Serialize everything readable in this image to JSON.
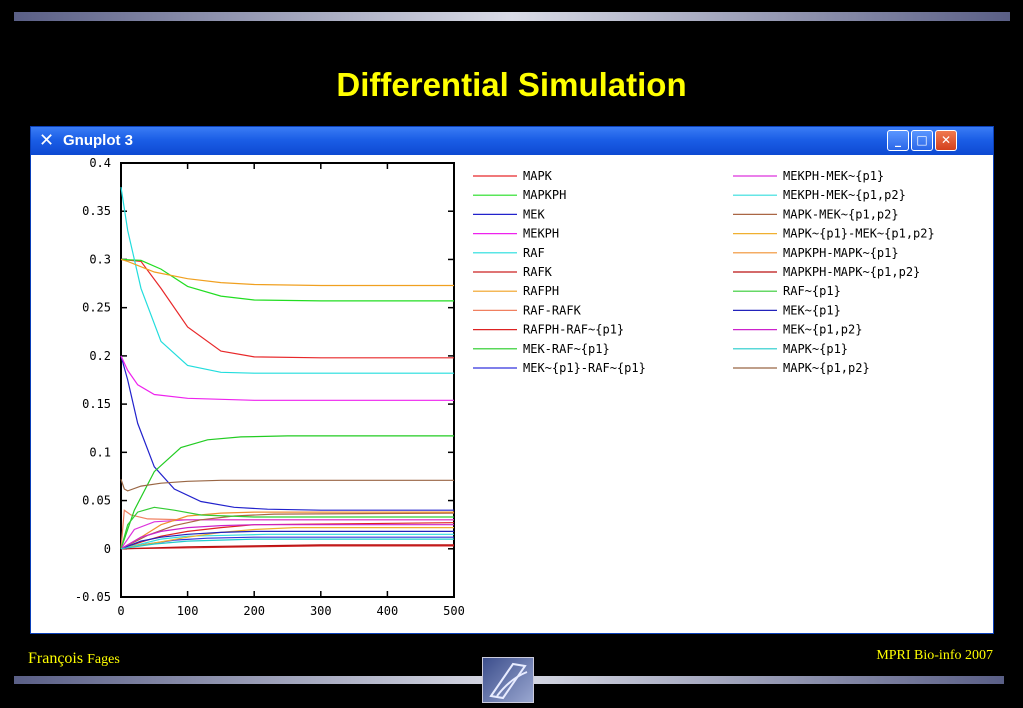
{
  "slide": {
    "title": "Differential Simulation",
    "author_first": "François",
    "author_last": "Fages",
    "course": "MPRI Bio-info  2007"
  },
  "window": {
    "title": "Gnuplot 3",
    "icon": "x11-icon",
    "buttons": {
      "minimize": "minimize-icon",
      "maximize": "maximize-icon",
      "close": "close-icon"
    }
  },
  "chart_data": {
    "type": "line",
    "xlim": [
      0,
      500
    ],
    "ylim": [
      -0.05,
      0.4
    ],
    "xticks": [
      0,
      100,
      200,
      300,
      400,
      500
    ],
    "yticks": [
      -0.05,
      0,
      0.05,
      0.1,
      0.15,
      0.2,
      0.25,
      0.3,
      0.35,
      0.4
    ],
    "xtick_labels": [
      "0",
      "100",
      "200",
      "300",
      "400",
      "500"
    ],
    "ytick_labels": [
      "-0.05",
      "0",
      "0.05",
      "0.1",
      "0.15",
      "0.2",
      "0.25",
      "0.3",
      "0.35",
      "0.4"
    ],
    "grid": false,
    "legend_position": "right",
    "series": [
      {
        "name": "MAPK",
        "color": "#e8282a",
        "x": [
          0,
          30,
          60,
          100,
          150,
          200,
          300,
          500
        ],
        "y": [
          0.3,
          0.298,
          0.27,
          0.23,
          0.205,
          0.199,
          0.198,
          0.198
        ]
      },
      {
        "name": "MAPKPH",
        "color": "#22dd22",
        "x": [
          0,
          30,
          60,
          100,
          150,
          200,
          300,
          500
        ],
        "y": [
          0.3,
          0.299,
          0.29,
          0.272,
          0.262,
          0.258,
          0.257,
          0.257
        ]
      },
      {
        "name": "MEK",
        "color": "#2222cc",
        "x": [
          0,
          10,
          25,
          50,
          80,
          120,
          170,
          220,
          300,
          500
        ],
        "y": [
          0.2,
          0.175,
          0.13,
          0.085,
          0.062,
          0.049,
          0.043,
          0.041,
          0.04,
          0.04
        ]
      },
      {
        "name": "MEKPH",
        "color": "#ee22ee",
        "x": [
          0,
          10,
          25,
          50,
          100,
          200,
          500
        ],
        "y": [
          0.2,
          0.185,
          0.17,
          0.16,
          0.156,
          0.154,
          0.154
        ]
      },
      {
        "name": "RAF",
        "color": "#22dddd",
        "x": [
          0,
          10,
          30,
          60,
          100,
          150,
          200,
          300,
          500
        ],
        "y": [
          0.375,
          0.33,
          0.27,
          0.215,
          0.19,
          0.183,
          0.182,
          0.182,
          0.182
        ]
      },
      {
        "name": "RAFK",
        "color": "#cc2222",
        "x": [
          0,
          100,
          200,
          300,
          500
        ],
        "y": [
          0.0,
          0.001,
          0.002,
          0.003,
          0.003
        ]
      },
      {
        "name": "RAFPH",
        "color": "#f0a020",
        "x": [
          0,
          10,
          50,
          100,
          150,
          200,
          300,
          500
        ],
        "y": [
          0.3,
          0.298,
          0.287,
          0.28,
          0.276,
          0.274,
          0.273,
          0.273
        ]
      },
      {
        "name": "RAF-RAFK",
        "color": "#f08060",
        "x": [
          0,
          5,
          15,
          40,
          100,
          500
        ],
        "y": [
          0.0,
          0.04,
          0.035,
          0.031,
          0.03,
          0.03
        ]
      },
      {
        "name": "RAFPH-RAF~{p1}",
        "color": "#dd2222",
        "x": [
          0,
          30,
          60,
          100,
          150,
          200,
          500
        ],
        "y": [
          0.0,
          0.007,
          0.013,
          0.018,
          0.022,
          0.025,
          0.027
        ]
      },
      {
        "name": "MEK-RAF~{p1}",
        "color": "#22cc22",
        "x": [
          0,
          20,
          50,
          90,
          130,
          180,
          250,
          500
        ],
        "y": [
          0.0,
          0.04,
          0.08,
          0.105,
          0.113,
          0.116,
          0.117,
          0.117
        ]
      },
      {
        "name": "MEK~{p1}-RAF~{p1}",
        "color": "#3333dd",
        "x": [
          0,
          40,
          80,
          130,
          200,
          500
        ],
        "y": [
          0.0,
          0.005,
          0.009,
          0.011,
          0.012,
          0.012
        ]
      },
      {
        "name": "MEKPH-MEK~{p1}",
        "color": "#dd33dd",
        "x": [
          0,
          20,
          50,
          100,
          200,
          500
        ],
        "y": [
          0.0,
          0.02,
          0.028,
          0.03,
          0.03,
          0.03
        ]
      },
      {
        "name": "MEKPH-MEK~{p1,p2}",
        "color": "#33dddd",
        "x": [
          0,
          30,
          60,
          100,
          160,
          220,
          500
        ],
        "y": [
          0.0,
          0.005,
          0.01,
          0.013,
          0.014,
          0.015,
          0.015
        ]
      },
      {
        "name": "MAPK-MEK~{p1,p2}",
        "color": "#aa6644",
        "x": [
          0,
          40,
          80,
          120,
          170,
          230,
          500
        ],
        "y": [
          0.0,
          0.014,
          0.024,
          0.03,
          0.034,
          0.036,
          0.037
        ]
      },
      {
        "name": "MAPK~{p1}-MEK~{p1,p2}",
        "color": "#f0b030",
        "x": [
          0,
          50,
          100,
          150,
          200,
          260,
          500
        ],
        "y": [
          0.0,
          0.006,
          0.012,
          0.017,
          0.02,
          0.022,
          0.022
        ]
      },
      {
        "name": "MAPKPH-MAPK~{p1}",
        "color": "#f09030",
        "x": [
          0,
          30,
          60,
          100,
          150,
          200,
          500
        ],
        "y": [
          0.0,
          0.012,
          0.025,
          0.034,
          0.037,
          0.038,
          0.038
        ]
      },
      {
        "name": "MAPKPH-MAPK~{p1,p2}",
        "color": "#bb1111",
        "x": [
          0,
          50,
          100,
          200,
          300,
          500
        ],
        "y": [
          0.0,
          0.001,
          0.002,
          0.003,
          0.004,
          0.004
        ]
      },
      {
        "name": "RAF~{p1}",
        "color": "#33cc33",
        "x": [
          0,
          10,
          25,
          50,
          80,
          120,
          200,
          500
        ],
        "y": [
          0.0,
          0.025,
          0.038,
          0.043,
          0.04,
          0.035,
          0.033,
          0.033
        ]
      },
      {
        "name": "MEK~{p1}",
        "color": "#2222bb",
        "x": [
          0,
          30,
          60,
          100,
          150,
          200,
          500
        ],
        "y": [
          0.0,
          0.008,
          0.012,
          0.015,
          0.017,
          0.018,
          0.018
        ]
      },
      {
        "name": "MEK~{p1,p2}",
        "color": "#cc22cc",
        "x": [
          0,
          30,
          60,
          100,
          150,
          200,
          500
        ],
        "y": [
          0.0,
          0.012,
          0.018,
          0.022,
          0.024,
          0.025,
          0.025
        ]
      },
      {
        "name": "MAPK~{p1}",
        "color": "#22cccc",
        "x": [
          0,
          50,
          100,
          150,
          200,
          260,
          500
        ],
        "y": [
          0.0,
          0.005,
          0.008,
          0.009,
          0.01,
          0.01,
          0.01
        ]
      },
      {
        "name": "MAPK~{p1,p2}",
        "color": "#996644",
        "x": [
          0,
          5,
          10,
          30,
          60,
          100,
          150,
          200,
          500
        ],
        "y": [
          0.072,
          0.062,
          0.06,
          0.065,
          0.068,
          0.07,
          0.071,
          0.071,
          0.071
        ]
      }
    ]
  }
}
